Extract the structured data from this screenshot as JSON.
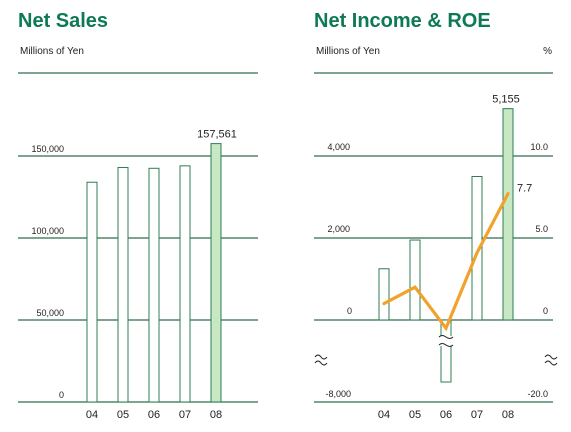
{
  "colors": {
    "title": "#0e7a55",
    "grid": "#2e6e4c",
    "bar_stroke": "#2e7d52",
    "bar_fill": "#ffffff",
    "highlight_fill": "#c7e8c3",
    "line": "#f2a12b"
  },
  "chart_data": [
    {
      "type": "bar",
      "title": "Net Sales",
      "unit_label": "Millions of Yen",
      "categories": [
        "04",
        "05",
        "06",
        "07",
        "08"
      ],
      "values": [
        134000,
        143000,
        142500,
        144000,
        157561
      ],
      "highlight_category": "08",
      "ylim": [
        0,
        175000
      ],
      "ytick_values": [
        0,
        50000,
        100000,
        150000
      ],
      "ytick_labels": [
        "0",
        "50,000",
        "100,000",
        "150,000"
      ],
      "data_labels": [
        {
          "category": "08",
          "text": "157,561"
        }
      ],
      "grid": true
    },
    {
      "type": "bar+line",
      "title": "Net Income & ROE",
      "unit_label_left": "Millions of Yen",
      "unit_label_right": "%",
      "categories": [
        "04",
        "05",
        "06",
        "07",
        "08"
      ],
      "series": [
        {
          "type": "bar",
          "axis": "left",
          "values": [
            1250,
            1950,
            -8000,
            3500,
            5155
          ]
        },
        {
          "type": "line",
          "axis": "right",
          "values": [
            1.0,
            2.0,
            -2.0,
            4.1,
            7.7
          ]
        }
      ],
      "highlight_category": "08",
      "axis_break": true,
      "left_ytick_values": [
        -8000,
        0,
        2000,
        4000
      ],
      "left_ytick_labels": [
        "-8,000",
        "0",
        "2,000",
        "4,000"
      ],
      "right_ytick_values": [
        -20.0,
        0,
        5.0,
        10.0
      ],
      "right_ytick_labels": [
        "-20.0",
        "0",
        "5.0",
        "10.0"
      ],
      "data_labels": [
        {
          "series": 0,
          "category": "08",
          "text": "5,155"
        },
        {
          "series": 1,
          "category": "08",
          "text": "7.7"
        }
      ],
      "grid": true
    }
  ]
}
